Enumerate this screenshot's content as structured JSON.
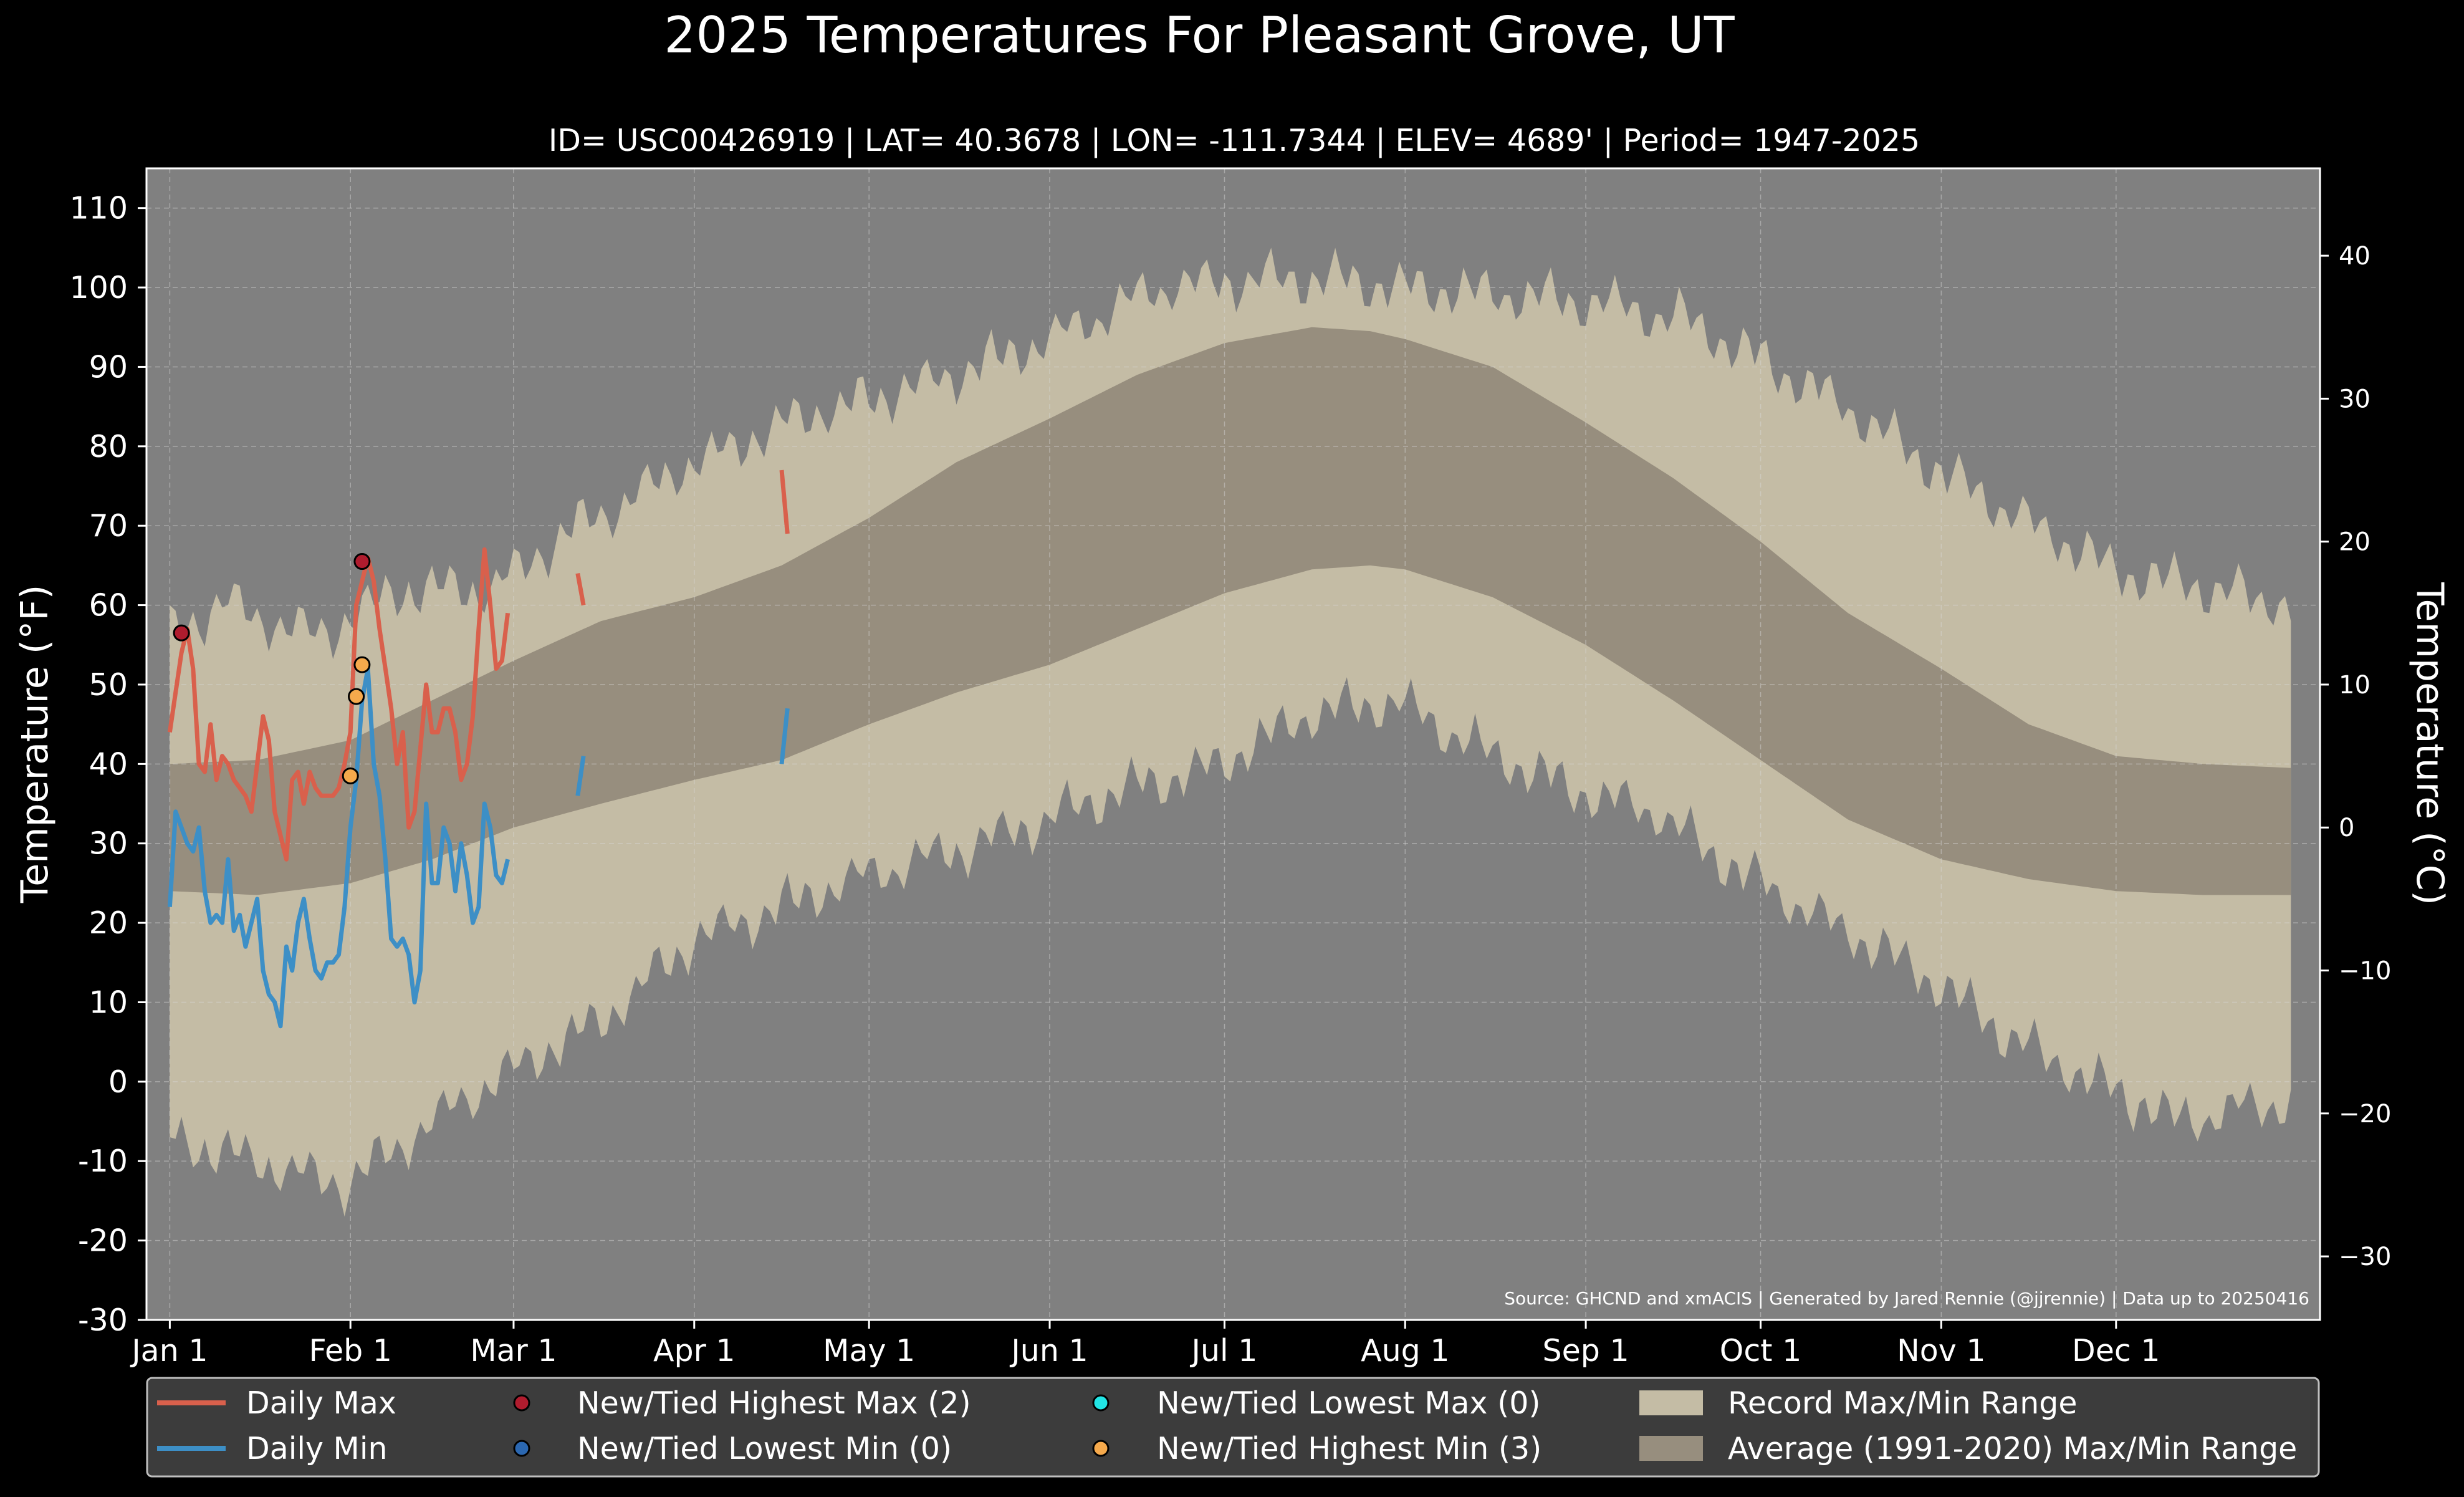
{
  "chart_data": {
    "type": "area",
    "title": "2025 Temperatures For Pleasant Grove, UT",
    "subtitle": "ID= USC00426919 | LAT= 40.3678 | LON= -111.7344 | ELEV= 4689' | Period= 1947-2025",
    "ylabel_left": "Temperature (°F)",
    "ylabel_right": "Temperature (°C)",
    "source": "Source: GHCND and xmACIS | Generated by Jared Rennie (@jjrennie) | Data up to 20250416",
    "ylim": [
      -30,
      115
    ],
    "xlim": [
      -4,
      369
    ],
    "grid": true,
    "legend_position": "bottom",
    "yticks_f": [
      "110",
      "100",
      "90",
      "80",
      "70",
      "60",
      "50",
      "40",
      "30",
      "20",
      "10",
      "0",
      "-10",
      "-20",
      "-30"
    ],
    "yticks_c": [
      "40",
      "30",
      "20",
      "10",
      "0",
      "−10",
      "−20",
      "−30"
    ],
    "xticks": [
      {
        "day": 0,
        "label": "Jan 1"
      },
      {
        "day": 31,
        "label": "Feb 1"
      },
      {
        "day": 59,
        "label": "Mar 1"
      },
      {
        "day": 90,
        "label": "Apr 1"
      },
      {
        "day": 120,
        "label": "May 1"
      },
      {
        "day": 151,
        "label": "Jun 1"
      },
      {
        "day": 181,
        "label": "Jul 1"
      },
      {
        "day": 212,
        "label": "Aug 1"
      },
      {
        "day": 243,
        "label": "Sep 1"
      },
      {
        "day": 273,
        "label": "Oct 1"
      },
      {
        "day": 304,
        "label": "Nov 1"
      },
      {
        "day": 334,
        "label": "Dec 1"
      }
    ],
    "legend": {
      "daily_max": "Daily Max",
      "daily_min": "Daily Min",
      "highest_max": "New/Tied Highest Max (2)",
      "lowest_min": "New/Tied Lowest Min (0)",
      "lowest_max": "New/Tied Lowest Max (0)",
      "highest_min": "New/Tied Highest Min (3)",
      "record_range": "Record Max/Min Range",
      "average_range": "Average (1991-2020) Max/Min Range"
    },
    "colors": {
      "background": "#000000",
      "plot_background": "#808080",
      "record_range": "#c4bca5",
      "average_range": "#978e7e",
      "daily_max": "#d9604c",
      "daily_min": "#3d8fc6",
      "highest_max": "#b01c2e",
      "lowest_min": "#2b67b0",
      "lowest_max": "#22e5e5",
      "highest_min": "#f5a94c",
      "legend_background": "#3c3c3c"
    },
    "record_max_anchors": [
      [
        0,
        57
      ],
      [
        10,
        60
      ],
      [
        25,
        56
      ],
      [
        40,
        62
      ],
      [
        55,
        62
      ],
      [
        70,
        70
      ],
      [
        90,
        78
      ],
      [
        110,
        84
      ],
      [
        130,
        88
      ],
      [
        150,
        93
      ],
      [
        170,
        100
      ],
      [
        185,
        101
      ],
      [
        200,
        101
      ],
      [
        215,
        100
      ],
      [
        230,
        99
      ],
      [
        245,
        98
      ],
      [
        260,
        96
      ],
      [
        275,
        90
      ],
      [
        290,
        84
      ],
      [
        305,
        76
      ],
      [
        320,
        70
      ],
      [
        335,
        64
      ],
      [
        350,
        62
      ],
      [
        364,
        60
      ]
    ],
    "record_min_anchors": [
      [
        0,
        -7
      ],
      [
        15,
        -10
      ],
      [
        30,
        -13
      ],
      [
        45,
        -5
      ],
      [
        60,
        2
      ],
      [
        75,
        8
      ],
      [
        90,
        18
      ],
      [
        105,
        22
      ],
      [
        120,
        26
      ],
      [
        135,
        29
      ],
      [
        150,
        33
      ],
      [
        165,
        37
      ],
      [
        180,
        40
      ],
      [
        195,
        46
      ],
      [
        210,
        48
      ],
      [
        225,
        42
      ],
      [
        240,
        37
      ],
      [
        255,
        34
      ],
      [
        270,
        26
      ],
      [
        285,
        20
      ],
      [
        300,
        14
      ],
      [
        315,
        6
      ],
      [
        330,
        0
      ],
      [
        345,
        -5
      ],
      [
        364,
        -2
      ]
    ],
    "avg_max_anchors": [
      [
        0,
        40
      ],
      [
        15,
        40.5
      ],
      [
        31,
        43
      ],
      [
        45,
        48
      ],
      [
        59,
        53
      ],
      [
        74,
        58
      ],
      [
        90,
        61
      ],
      [
        105,
        65
      ],
      [
        120,
        71
      ],
      [
        135,
        78
      ],
      [
        151,
        83.5
      ],
      [
        166,
        89
      ],
      [
        181,
        93
      ],
      [
        196,
        95
      ],
      [
        206,
        94.5
      ],
      [
        212,
        93.5
      ],
      [
        227,
        90
      ],
      [
        243,
        83
      ],
      [
        258,
        76
      ],
      [
        273,
        68
      ],
      [
        288,
        59
      ],
      [
        304,
        52
      ],
      [
        319,
        45
      ],
      [
        334,
        41
      ],
      [
        349,
        40
      ],
      [
        364,
        39.5
      ]
    ],
    "avg_min_anchors": [
      [
        0,
        24
      ],
      [
        15,
        23.5
      ],
      [
        31,
        25
      ],
      [
        45,
        28
      ],
      [
        59,
        32
      ],
      [
        74,
        35
      ],
      [
        90,
        38
      ],
      [
        105,
        40.5
      ],
      [
        120,
        45
      ],
      [
        135,
        49
      ],
      [
        151,
        52.5
      ],
      [
        166,
        57
      ],
      [
        181,
        61.5
      ],
      [
        196,
        64.5
      ],
      [
        206,
        65
      ],
      [
        212,
        64.5
      ],
      [
        227,
        61
      ],
      [
        243,
        55
      ],
      [
        258,
        48
      ],
      [
        273,
        40.5
      ],
      [
        288,
        33
      ],
      [
        304,
        28
      ],
      [
        319,
        25.5
      ],
      [
        334,
        24
      ],
      [
        349,
        23.5
      ],
      [
        364,
        23.5
      ]
    ],
    "series": [
      {
        "name": "Daily Max",
        "segments": [
          [
            [
              0,
              44
            ],
            [
              1,
              49
            ],
            [
              2,
              54
            ],
            [
              3,
              57
            ],
            [
              4,
              52
            ],
            [
              5,
              40
            ],
            [
              6,
              39
            ],
            [
              7,
              45
            ],
            [
              8,
              38
            ],
            [
              9,
              41
            ],
            [
              10,
              40
            ],
            [
              11,
              38
            ],
            [
              12,
              37
            ],
            [
              13,
              36
            ],
            [
              14,
              34
            ],
            [
              15,
              40
            ],
            [
              16,
              46
            ],
            [
              17,
              43
            ],
            [
              18,
              34
            ],
            [
              19,
              31
            ],
            [
              20,
              28
            ],
            [
              21,
              38
            ],
            [
              22,
              39
            ],
            [
              23,
              35
            ],
            [
              24,
              39
            ],
            [
              25,
              37
            ],
            [
              26,
              36
            ],
            [
              27,
              36
            ],
            [
              28,
              36
            ],
            [
              29,
              37
            ],
            [
              30,
              40
            ],
            [
              31,
              44
            ],
            [
              32,
              60
            ],
            [
              33,
              63
            ],
            [
              34,
              66
            ],
            [
              35,
              63
            ],
            [
              36,
              57
            ],
            [
              37,
              52
            ],
            [
              38,
              47
            ],
            [
              39,
              40
            ],
            [
              40,
              44
            ],
            [
              41,
              32
            ],
            [
              42,
              34
            ],
            [
              43,
              42
            ],
            [
              44,
              50
            ],
            [
              45,
              44
            ],
            [
              46,
              44
            ],
            [
              47,
              47
            ],
            [
              48,
              47
            ],
            [
              49,
              44
            ],
            [
              50,
              38
            ],
            [
              51,
              40
            ],
            [
              52,
              46
            ],
            [
              53,
              57
            ],
            [
              54,
              67
            ],
            [
              55,
              60
            ],
            [
              56,
              52
            ],
            [
              57,
              53
            ],
            [
              58,
              59
            ]
          ],
          [
            [
              70,
              64
            ],
            [
              71,
              60
            ]
          ],
          [
            [
              105,
              77
            ],
            [
              106,
              69
            ]
          ]
        ]
      },
      {
        "name": "Daily Min",
        "segments": [
          [
            [
              0,
              22
            ],
            [
              1,
              34
            ],
            [
              2,
              32
            ],
            [
              3,
              30
            ],
            [
              4,
              29
            ],
            [
              5,
              32
            ],
            [
              6,
              24
            ],
            [
              7,
              20
            ],
            [
              8,
              21
            ],
            [
              9,
              20
            ],
            [
              10,
              28
            ],
            [
              11,
              19
            ],
            [
              12,
              21
            ],
            [
              13,
              17
            ],
            [
              14,
              20
            ],
            [
              15,
              23
            ],
            [
              16,
              14
            ],
            [
              17,
              11
            ],
            [
              18,
              10
            ],
            [
              19,
              7
            ],
            [
              20,
              17
            ],
            [
              21,
              14
            ],
            [
              22,
              20
            ],
            [
              23,
              23
            ],
            [
              24,
              18
            ],
            [
              25,
              14
            ],
            [
              26,
              13
            ],
            [
              27,
              15
            ],
            [
              28,
              15
            ],
            [
              29,
              16
            ],
            [
              30,
              22
            ],
            [
              31,
              32
            ],
            [
              32,
              38
            ],
            [
              33,
              48
            ],
            [
              34,
              52
            ],
            [
              35,
              40
            ],
            [
              36,
              36
            ],
            [
              37,
              28
            ],
            [
              38,
              18
            ],
            [
              39,
              17
            ],
            [
              40,
              18
            ],
            [
              41,
              16
            ],
            [
              42,
              10
            ],
            [
              43,
              14
            ],
            [
              44,
              35
            ],
            [
              45,
              25
            ],
            [
              46,
              25
            ],
            [
              47,
              32
            ],
            [
              48,
              30
            ],
            [
              49,
              24
            ],
            [
              50,
              30
            ],
            [
              51,
              26
            ],
            [
              52,
              20
            ],
            [
              53,
              22
            ],
            [
              54,
              35
            ],
            [
              55,
              32
            ],
            [
              56,
              26
            ],
            [
              57,
              25
            ],
            [
              58,
              28
            ]
          ],
          [
            [
              70,
              36
            ],
            [
              71,
              41
            ]
          ],
          [
            [
              105,
              40
            ],
            [
              106,
              47
            ]
          ]
        ]
      }
    ],
    "record_markers": [
      {
        "type": "highest_max",
        "day": 2,
        "value": 56.5
      },
      {
        "type": "highest_max",
        "day": 33,
        "value": 65.5
      },
      {
        "type": "highest_min",
        "day": 31,
        "value": 38.5
      },
      {
        "type": "highest_min",
        "day": 32,
        "value": 48.5
      },
      {
        "type": "highest_min",
        "day": 33,
        "value": 52.5
      }
    ]
  }
}
